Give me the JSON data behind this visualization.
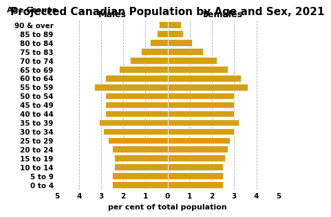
{
  "title": "Projected Canadian Population by Age and Sex, 2021",
  "age_groups": [
    "0 to 4",
    "5 to 9",
    "10 to 14",
    "15 to 19",
    "20 to 24",
    "25 to 29",
    "30 to 34",
    "35 to 39",
    "40 to 44",
    "45 to 49",
    "50 to 54",
    "55 to 59",
    "60 to 64",
    "65 to 69",
    "70 to 74",
    "75 to 83",
    "80 to 84",
    "85 to 89",
    "90 & over"
  ],
  "males": [
    2.5,
    2.5,
    2.4,
    2.4,
    2.5,
    2.7,
    2.9,
    3.1,
    2.8,
    2.8,
    2.8,
    3.3,
    2.8,
    2.2,
    1.7,
    1.2,
    0.8,
    0.5,
    0.4
  ],
  "females": [
    2.5,
    2.5,
    2.5,
    2.6,
    2.7,
    2.8,
    3.0,
    3.2,
    3.0,
    3.0,
    3.0,
    3.6,
    3.3,
    2.7,
    2.2,
    1.6,
    1.1,
    0.7,
    0.6
  ],
  "bar_color": "#D4A017",
  "background_color": "#ffffff",
  "xlabel": "per cent of total population",
  "males_label": "Males",
  "females_label": "Females",
  "age_groups_label": "Age Groups",
  "xlim": [
    -5,
    5
  ],
  "xticklabels": [
    "5",
    "4",
    "3",
    "2",
    "1",
    "0",
    "1",
    "2",
    "3",
    "4",
    "5"
  ],
  "grid_color": "#aaaaaa",
  "title_fontsize": 11,
  "label_fontsize": 8,
  "tick_fontsize": 7.5,
  "bar_height": 0.75
}
